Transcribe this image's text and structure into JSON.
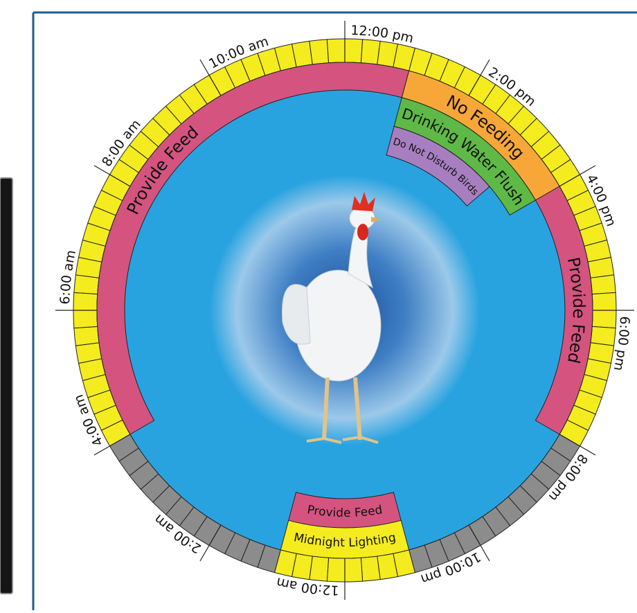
{
  "time_labels": [
    "12:00 pm",
    "2:00 pm",
    "4:00 pm",
    "6:00 pm",
    "8:00 pm",
    "10:00 pm",
    "12:00 am",
    "2:00 am",
    "4:00 am",
    "6:00 am",
    "8:00 am",
    "10:00 am"
  ],
  "segments": [
    "Provide Feed",
    "No Feeding",
    "Provide Feed",
    "Drinking Water Flush",
    "Do Not Disturb Birds",
    "Provide Feed",
    "Midnight Lighting"
  ]
}
